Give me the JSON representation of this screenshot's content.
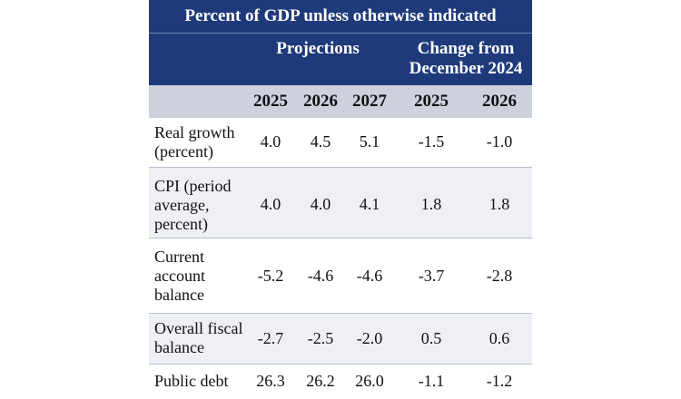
{
  "header": {
    "banner": "Percent of GDP unless otherwise indicated",
    "projections_label": "Projections",
    "change_label_line1": "Change from",
    "change_label_line2": "December 2024"
  },
  "years": [
    "2025",
    "2026",
    "2027",
    "2025",
    "2026"
  ],
  "rows": [
    {
      "label_lines": [
        "Real growth",
        "(percent)"
      ],
      "values": [
        "4.0",
        "4.5",
        "5.1",
        "-1.5",
        "-1.0"
      ]
    },
    {
      "label_lines": [
        "CPI (period",
        "average,",
        "percent)"
      ],
      "values": [
        "4.0",
        "4.0",
        "4.1",
        "1.8",
        "1.8"
      ]
    },
    {
      "label_lines": [
        "Current",
        "account",
        "balance"
      ],
      "values": [
        "-5.2",
        "-4.6",
        "-4.6",
        "-3.7",
        "-2.8"
      ]
    },
    {
      "label_lines": [
        "Overall fiscal",
        "balance"
      ],
      "values": [
        "-2.7",
        "-2.5",
        "-2.0",
        "0.5",
        "0.6"
      ]
    },
    {
      "label_lines": [
        "Public debt"
      ],
      "values": [
        "26.3",
        "26.2",
        "26.0",
        "-1.1",
        "-1.2"
      ]
    }
  ],
  "colors": {
    "header_bg": "#1f3a7a",
    "year_bg": "#cdd1dc",
    "alt_row_bg": "#eef0f5"
  }
}
